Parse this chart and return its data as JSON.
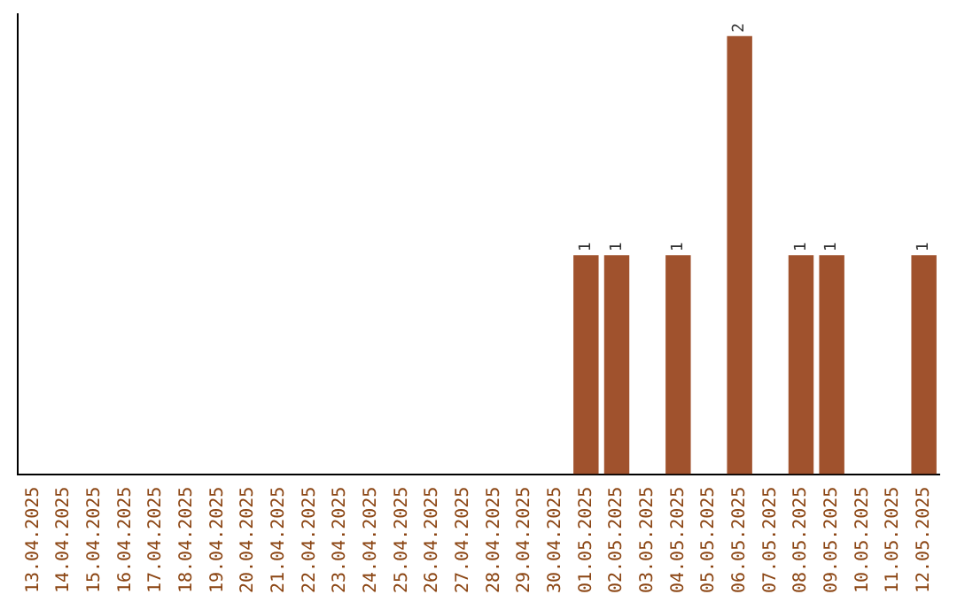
{
  "chart_data": {
    "type": "bar",
    "categories": [
      "13.04.2025",
      "14.04.2025",
      "15.04.2025",
      "16.04.2025",
      "17.04.2025",
      "18.04.2025",
      "19.04.2025",
      "20.04.2025",
      "21.04.2025",
      "22.04.2025",
      "23.04.2025",
      "24.04.2025",
      "25.04.2025",
      "26.04.2025",
      "27.04.2025",
      "28.04.2025",
      "29.04.2025",
      "30.04.2025",
      "01.05.2025",
      "02.05.2025",
      "03.05.2025",
      "04.05.2025",
      "05.05.2025",
      "06.05.2025",
      "07.05.2025",
      "08.05.2025",
      "09.05.2025",
      "10.05.2025",
      "11.05.2025",
      "12.05.2025"
    ],
    "values": [
      null,
      null,
      null,
      null,
      null,
      null,
      null,
      null,
      null,
      null,
      null,
      null,
      null,
      null,
      null,
      null,
      null,
      null,
      1,
      1,
      null,
      1,
      null,
      2,
      null,
      1,
      1,
      null,
      null,
      1
    ],
    "value_labels": [
      null,
      null,
      null,
      null,
      null,
      null,
      null,
      null,
      null,
      null,
      null,
      null,
      null,
      null,
      null,
      null,
      null,
      null,
      "1",
      "1",
      null,
      "1",
      null,
      "2",
      null,
      "1",
      "1",
      null,
      null,
      "1"
    ],
    "color": "#a0522d",
    "ylim": [
      0,
      2.1
    ],
    "tick_labels": "x",
    "grid": false,
    "legend": false
  }
}
